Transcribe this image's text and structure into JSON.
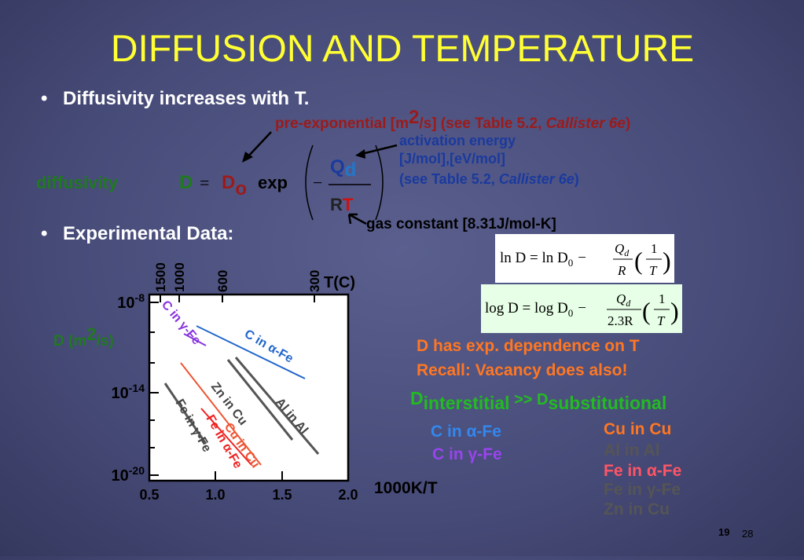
{
  "title": "DIFFUSION AND TEMPERATURE",
  "bullets": [
    "Diffusivity increases with T.",
    "Experimental Data:"
  ],
  "pre_exponential": {
    "text": "pre-exponential [m",
    "sup": "2",
    "rest": "/s] (see Table 5.2, ",
    "book": "Callister 6e",
    "close": ")"
  },
  "equation": {
    "label": "diffusivity",
    "D": "D",
    "eq": "=",
    "D0": "D",
    "sub0": "o",
    "exp": "exp",
    "minus": "−",
    "Q": "Q",
    "subd": "d",
    "R": "R",
    "T": "T"
  },
  "activation": {
    "line1": "activation energy",
    "line2": "[J/mol],[eV/mol]",
    "line3": "(see Table 5.2, ",
    "book": "Callister 6e",
    "close": ")"
  },
  "gas_constant": "gas constant [8.31J/mol-K]",
  "formula_ln": {
    "lhs": "ln D = ln D",
    "sub": "0",
    "minus": "−",
    "Q": "Q",
    "d": "d",
    "R": "R",
    "one": "1",
    "T": "T"
  },
  "formula_log": {
    "lhs": "log D = log D",
    "sub": "0",
    "minus": "−",
    "Q": "Q",
    "d": "d",
    "R": "2.3R",
    "one": "1",
    "T": "T"
  },
  "chart": {
    "ylabel": {
      "text": "D (m",
      "sup": "2",
      "rest": "/s)"
    },
    "yticks": [
      {
        "base": "10",
        "exp": "-8"
      },
      {
        "base": "10",
        "exp": "-14"
      },
      {
        "base": "10",
        "exp": "-20"
      }
    ],
    "top_ticks": [
      "1500",
      "1000",
      "600",
      "300"
    ],
    "top_label": "T(C)",
    "xticks": [
      "0.5",
      "1.0",
      "1.5",
      "2.0"
    ],
    "xlabel": "1000K/T",
    "lines": [
      "C in γ-Fe",
      "C in α-Fe",
      "Zn in Cu",
      "Al in Al",
      "Fe in γ-Fe",
      "Cu in Cu",
      "Fe in α-Fe"
    ]
  },
  "notes": [
    "D has exp. dependence on T",
    "Recall:  Vacancy does also!"
  ],
  "comparison": {
    "d1": "D",
    "sub1": "interstitial",
    "op": " >> D",
    "sub2": "substitutional"
  },
  "legend_left": [
    "C in α-Fe",
    "C in γ-Fe"
  ],
  "legend_right": [
    "Cu in Cu",
    "Al in Al",
    "Fe in α-Fe",
    "Fe in γ-Fe",
    "Zn in Cu"
  ],
  "page_numbers": [
    "19",
    "28"
  ]
}
